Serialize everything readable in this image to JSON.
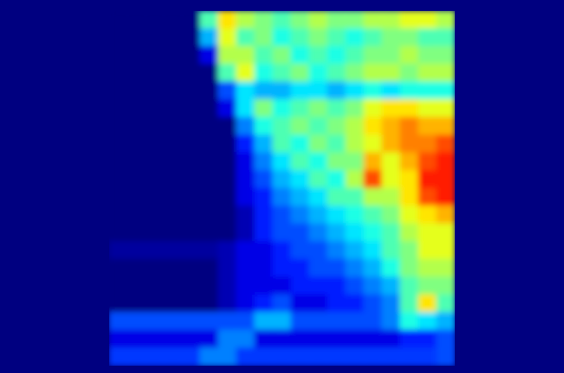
{
  "chart_data": {
    "type": "heatmap",
    "tick_labels": false,
    "zlim": [
      0,
      1
    ],
    "cells": [
      [
        0,
        0,
        0,
        0,
        0,
        0.45,
        0.65,
        0.55,
        0.5,
        0.45,
        0.5,
        0.55,
        0.5,
        0.5,
        0.55,
        0.55,
        0.6,
        0.6,
        0.55
      ],
      [
        0,
        0,
        0,
        0,
        0,
        0.3,
        0.6,
        0.45,
        0.5,
        0.4,
        0.45,
        0.5,
        0.45,
        0.4,
        0.45,
        0.5,
        0.5,
        0.45,
        0.45
      ],
      [
        0,
        0,
        0,
        0,
        0,
        0.1,
        0.55,
        0.55,
        0.45,
        0.5,
        0.4,
        0.45,
        0.4,
        0.45,
        0.5,
        0.5,
        0.55,
        0.5,
        0.5
      ],
      [
        0,
        0,
        0,
        0,
        0,
        0,
        0.45,
        0.6,
        0.4,
        0.45,
        0.5,
        0.4,
        0.45,
        0.5,
        0.55,
        0.55,
        0.5,
        0.55,
        0.55
      ],
      [
        0,
        0,
        0,
        0,
        0,
        0,
        0.2,
        0.35,
        0.3,
        0.3,
        0.35,
        0.35,
        0.3,
        0.35,
        0.4,
        0.35,
        0.4,
        0.4,
        0.4
      ],
      [
        0,
        0,
        0,
        0,
        0,
        0,
        0.1,
        0.35,
        0.5,
        0.4,
        0.45,
        0.5,
        0.45,
        0.5,
        0.6,
        0.65,
        0.65,
        0.6,
        0.6
      ],
      [
        0,
        0,
        0,
        0,
        0,
        0,
        0,
        0.25,
        0.4,
        0.45,
        0.5,
        0.45,
        0.5,
        0.55,
        0.65,
        0.7,
        0.75,
        0.7,
        0.7
      ],
      [
        0,
        0,
        0,
        0,
        0,
        0,
        0,
        0.15,
        0.3,
        0.45,
        0.4,
        0.5,
        0.45,
        0.55,
        0.6,
        0.7,
        0.75,
        0.75,
        0.8
      ],
      [
        0,
        0,
        0,
        0,
        0,
        0,
        0,
        0.1,
        0.25,
        0.35,
        0.45,
        0.4,
        0.5,
        0.5,
        0.7,
        0.6,
        0.7,
        0.8,
        0.85
      ],
      [
        0,
        0,
        0,
        0,
        0,
        0,
        0,
        0.1,
        0.2,
        0.3,
        0.35,
        0.45,
        0.4,
        0.55,
        0.8,
        0.6,
        0.65,
        0.85,
        0.85
      ],
      [
        0,
        0,
        0,
        0,
        0,
        0,
        0,
        0.1,
        0.15,
        0.25,
        0.3,
        0.35,
        0.45,
        0.45,
        0.55,
        0.55,
        0.65,
        0.8,
        0.85
      ],
      [
        0,
        0,
        0,
        0,
        0,
        0,
        0,
        0.05,
        0.15,
        0.2,
        0.25,
        0.3,
        0.35,
        0.4,
        0.45,
        0.5,
        0.6,
        0.65,
        0.7
      ],
      [
        0,
        0,
        0,
        0,
        0,
        0,
        0,
        0.05,
        0.15,
        0.2,
        0.2,
        0.25,
        0.3,
        0.35,
        0.4,
        0.45,
        0.55,
        0.6,
        0.6
      ],
      [
        0.03,
        0.03,
        0.03,
        0.03,
        0.03,
        0.03,
        0.05,
        0.1,
        0.1,
        0.15,
        0.2,
        0.2,
        0.25,
        0.3,
        0.35,
        0.45,
        0.5,
        0.6,
        0.6
      ],
      [
        0,
        0,
        0,
        0,
        0,
        0,
        0.05,
        0.1,
        0.1,
        0.15,
        0.15,
        0.2,
        0.2,
        0.25,
        0.3,
        0.4,
        0.5,
        0.55,
        0.55
      ],
      [
        0,
        0,
        0,
        0,
        0,
        0,
        0.05,
        0.1,
        0.1,
        0.1,
        0.15,
        0.15,
        0.15,
        0.2,
        0.25,
        0.3,
        0.45,
        0.5,
        0.5
      ],
      [
        0,
        0,
        0,
        0,
        0,
        0,
        0.05,
        0.1,
        0.15,
        0.2,
        0.1,
        0.1,
        0.15,
        0.15,
        0.2,
        0.25,
        0.45,
        0.65,
        0.45
      ],
      [
        0.2,
        0.2,
        0.2,
        0.2,
        0.2,
        0.2,
        0.2,
        0.2,
        0.3,
        0.3,
        0.2,
        0.2,
        0.2,
        0.2,
        0.2,
        0.25,
        0.4,
        0.35,
        0.3
      ],
      [
        0.1,
        0.1,
        0.1,
        0.1,
        0.1,
        0.1,
        0.25,
        0.25,
        0.1,
        0.1,
        0.1,
        0.1,
        0.1,
        0.1,
        0.1,
        0.1,
        0.15,
        0.15,
        0.2
      ],
      [
        0.18,
        0.18,
        0.18,
        0.18,
        0.18,
        0.25,
        0.25,
        0.18,
        0.18,
        0.18,
        0.18,
        0.18,
        0.18,
        0.18,
        0.18,
        0.18,
        0.18,
        0.18,
        0.2
      ]
    ]
  }
}
